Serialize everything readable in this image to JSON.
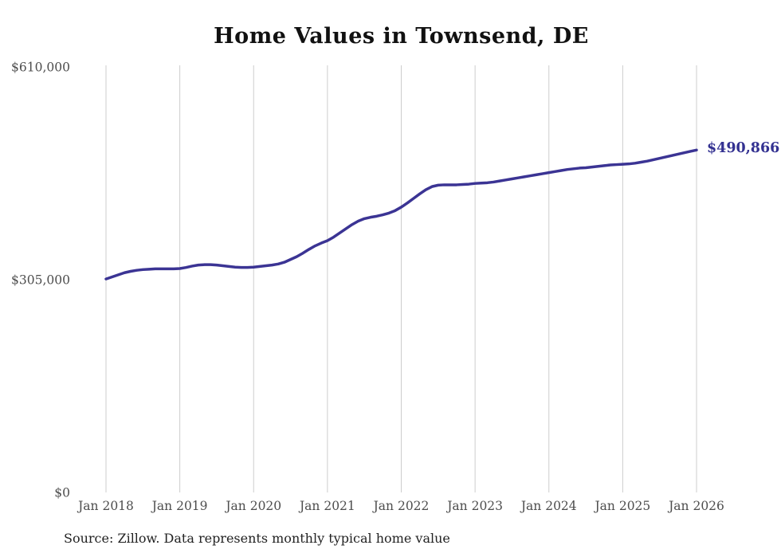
{
  "chart_data": {
    "type": "line",
    "title": "Home Values in Townsend, DE",
    "source_note": "Source: Zillow. Data represents monthly typical home value",
    "x_tick_labels": [
      "Jan 2018",
      "Jan 2019",
      "Jan 2020",
      "Jan 2021",
      "Jan 2022",
      "Jan 2023",
      "Jan 2024",
      "Jan 2025",
      "Jan 2026"
    ],
    "y_ticks": [
      {
        "label": "$610,000",
        "value": 610000
      },
      {
        "label": "$305,000",
        "value": 305000
      },
      {
        "label": "$0",
        "value": 0
      }
    ],
    "ylim": [
      0,
      610000
    ],
    "grid": "vertical-only",
    "legend": "none",
    "line_color": "#3b3494",
    "gridline_color": "#cdcdcd",
    "end_label": {
      "text": "$490,866",
      "value": 490866,
      "color": "#333191"
    },
    "series": [
      {
        "name": "Monthly typical home value",
        "start": "Jan 2018",
        "end": "Jan 2026",
        "frequency": "monthly",
        "values": [
          306000,
          309000,
          312000,
          315000,
          317000,
          318500,
          319500,
          320000,
          320500,
          320500,
          320500,
          320500,
          321000,
          322500,
          324500,
          326000,
          326500,
          326500,
          326000,
          325000,
          324000,
          323000,
          322500,
          322500,
          323000,
          324000,
          325000,
          326000,
          327500,
          330000,
          334000,
          338000,
          343000,
          348500,
          353500,
          357500,
          361000,
          366000,
          372000,
          378000,
          384000,
          389000,
          392500,
          394500,
          396000,
          398000,
          400500,
          404000,
          409000,
          415000,
          421500,
          428000,
          434000,
          438500,
          440500,
          441000,
          441000,
          441000,
          441500,
          442000,
          443000,
          443500,
          444000,
          445000,
          446500,
          448000,
          449500,
          451000,
          452500,
          454000,
          455500,
          457000,
          458500,
          460000,
          461500,
          463000,
          464000,
          465000,
          465500,
          466500,
          467500,
          468500,
          469500,
          470000,
          470500,
          471000,
          472000,
          473500,
          475000,
          477000,
          479000,
          481000,
          483000,
          485000,
          487000,
          489000,
          490866
        ]
      }
    ]
  }
}
